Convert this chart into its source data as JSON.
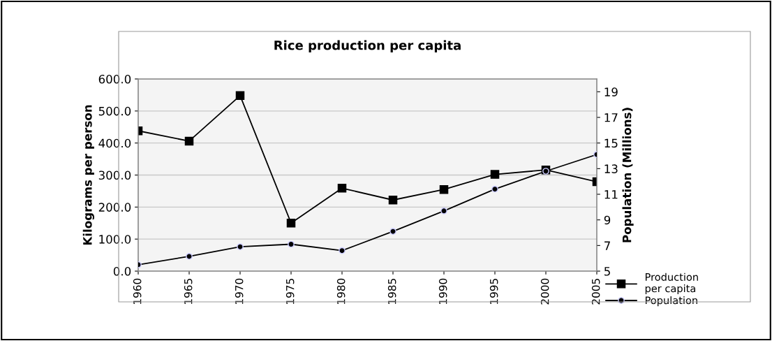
{
  "chart_data": {
    "type": "line",
    "title": "Rice production per capita",
    "ylabel": "Kilograms per person",
    "y2label": "Population (Millions)",
    "categories": [
      "1960",
      "1965",
      "1970",
      "1975",
      "1980",
      "1985",
      "1990",
      "1995",
      "2000",
      "2005"
    ],
    "series": [
      {
        "name": "Production\nper capita",
        "color": "#000000",
        "marker": "square",
        "values": [
          438,
          406,
          548,
          150,
          259,
          222,
          255,
          302,
          316,
          279
        ]
      },
      {
        "name": "Population",
        "color": "#000000",
        "marker": "circle",
        "axis": "y2",
        "values": [
          5.5,
          6.15,
          6.9,
          7.1,
          6.6,
          8.1,
          9.7,
          11.4,
          12.8,
          14.1
        ]
      }
    ],
    "ylim": [
      0,
      600
    ],
    "yticks": [
      {
        "value": 0,
        "label": "0.0"
      },
      {
        "value": 100,
        "label": "100.0"
      },
      {
        "value": 200,
        "label": "200.0"
      },
      {
        "value": 300,
        "label": "300.0"
      },
      {
        "value": 400,
        "label": "400.0"
      },
      {
        "value": 500,
        "label": "500.0"
      },
      {
        "value": 600,
        "label": "600.0"
      }
    ],
    "y2lim": [
      5,
      20
    ],
    "y2ticks": [
      5,
      7,
      9,
      11,
      13,
      15,
      17,
      19
    ],
    "grid": "y",
    "legend": "bottom right",
    "line_style": "solid"
  }
}
